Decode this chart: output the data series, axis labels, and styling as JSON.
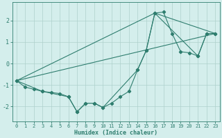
{
  "xlabel": "Humidex (Indice chaleur)",
  "background_color": "#d4eeec",
  "grid_color": "#aed0cc",
  "line_color": "#2e7d6e",
  "xlim": [
    -0.5,
    23.5
  ],
  "ylim": [
    -2.7,
    2.85
  ],
  "xticks": [
    0,
    1,
    2,
    3,
    4,
    5,
    6,
    7,
    8,
    9,
    10,
    11,
    12,
    13,
    14,
    15,
    16,
    17,
    18,
    19,
    20,
    21,
    22,
    23
  ],
  "yticks": [
    -2,
    -1,
    0,
    1,
    2
  ],
  "series1_x": [
    0,
    1,
    2,
    3,
    4,
    5,
    6,
    7,
    8,
    9,
    10,
    11,
    12,
    13,
    14,
    15,
    16,
    17,
    18,
    19,
    20,
    21,
    22,
    23
  ],
  "series1_y": [
    -0.8,
    -1.1,
    -1.2,
    -1.3,
    -1.35,
    -1.4,
    -1.55,
    -2.25,
    -1.85,
    -1.85,
    -2.05,
    -1.85,
    -1.55,
    -1.3,
    -0.3,
    0.6,
    2.35,
    2.4,
    1.4,
    0.55,
    0.5,
    0.35,
    1.4,
    1.4
  ],
  "series2_x": [
    0,
    3,
    6,
    7,
    8,
    9,
    10,
    14,
    15,
    16,
    21,
    22,
    23
  ],
  "series2_y": [
    -0.8,
    -1.3,
    -1.55,
    -2.25,
    -1.85,
    -1.85,
    -2.05,
    -0.3,
    0.6,
    2.35,
    0.35,
    1.4,
    1.4
  ],
  "series3_x": [
    0,
    23
  ],
  "series3_y": [
    -0.8,
    1.4
  ],
  "series4_x": [
    0,
    16,
    23
  ],
  "series4_y": [
    -0.8,
    2.35,
    1.4
  ]
}
